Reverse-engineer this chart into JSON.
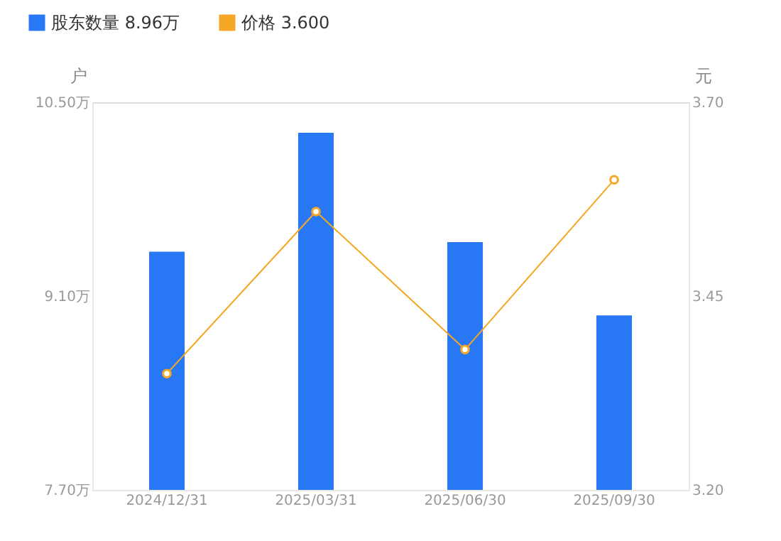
{
  "chart_data": {
    "type": "bar",
    "categories": [
      "2024/12/31",
      "2025/03/31",
      "2025/06/30",
      "2025/09/30"
    ],
    "series": [
      {
        "name": "股东数量 8.96万",
        "color": "#2878f5",
        "values": [
          9.42,
          10.28,
          9.49,
          8.96
        ]
      },
      {
        "name": "价格 3.600",
        "type": "line",
        "axis": "y2",
        "color": "#f5a623",
        "marker": "circle",
        "values": [
          3.35,
          3.559,
          3.381,
          3.6
        ]
      }
    ],
    "ylabel": "户",
    "y2label": "元",
    "ylim": [
      7.7,
      10.5
    ],
    "yticks": [
      {
        "value": 7.7,
        "label": "7.70万"
      },
      {
        "value": 9.1,
        "label": "9.10万"
      },
      {
        "value": 10.5,
        "label": "10.50万"
      }
    ],
    "y2lim": [
      3.2,
      3.7
    ],
    "y2ticks": [
      {
        "value": 3.2,
        "label": "3.20"
      },
      {
        "value": 3.45,
        "label": "3.45"
      },
      {
        "value": 3.7,
        "label": "3.70"
      }
    ],
    "grid": false,
    "legend": "top left",
    "line_style": "solid"
  }
}
